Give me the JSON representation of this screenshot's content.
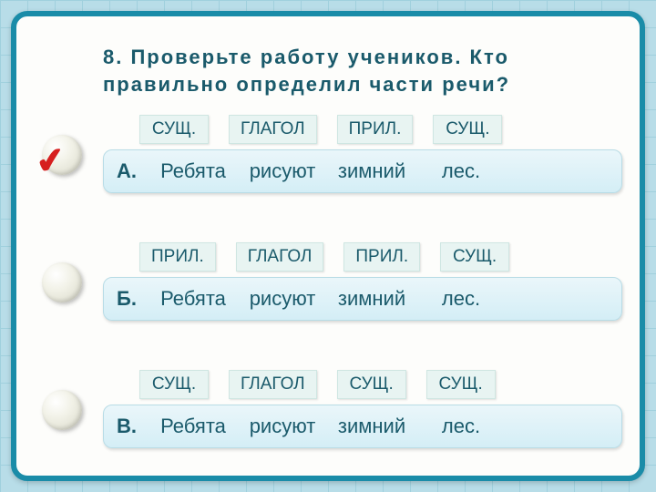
{
  "colors": {
    "background": "#b8dde8",
    "grid": "#a0d0dd",
    "frame_border": "#1a8ca8",
    "frame_bg": "#fdfdfb",
    "text": "#1a5a6b",
    "tag_bg": "#e8f4f2",
    "tag_border": "#cfe6e2",
    "sentence_bg_top": "#eaf6fa",
    "sentence_bg_bottom": "#d4eef6",
    "sentence_border": "#b8dce6",
    "check": "#d61f1f"
  },
  "typography": {
    "question_fontsize": 22,
    "question_weight": "bold",
    "tag_fontsize": 19,
    "sentence_fontsize": 22
  },
  "question": "8. Проверьте работу учеников. Кто правильно определил части речи?",
  "correct_index": 0,
  "options": [
    {
      "letter": "А.",
      "tags": [
        "СУЩ.",
        "ГЛАГОЛ",
        "ПРИЛ.",
        "СУЩ."
      ],
      "words": [
        "Ребята",
        "рисуют",
        "зимний",
        "лес."
      ]
    },
    {
      "letter": "Б.",
      "tags": [
        "ПРИЛ.",
        "ГЛАГОЛ",
        "ПРИЛ.",
        "СУЩ."
      ],
      "words": [
        "Ребята",
        "рисуют",
        "зимний",
        "лес."
      ]
    },
    {
      "letter": "В.",
      "tags": [
        "СУЩ.",
        "ГЛАГОЛ",
        "СУЩ.",
        "СУЩ."
      ],
      "words": [
        "Ребята",
        "рисуют",
        "зимний",
        "лес."
      ]
    }
  ]
}
